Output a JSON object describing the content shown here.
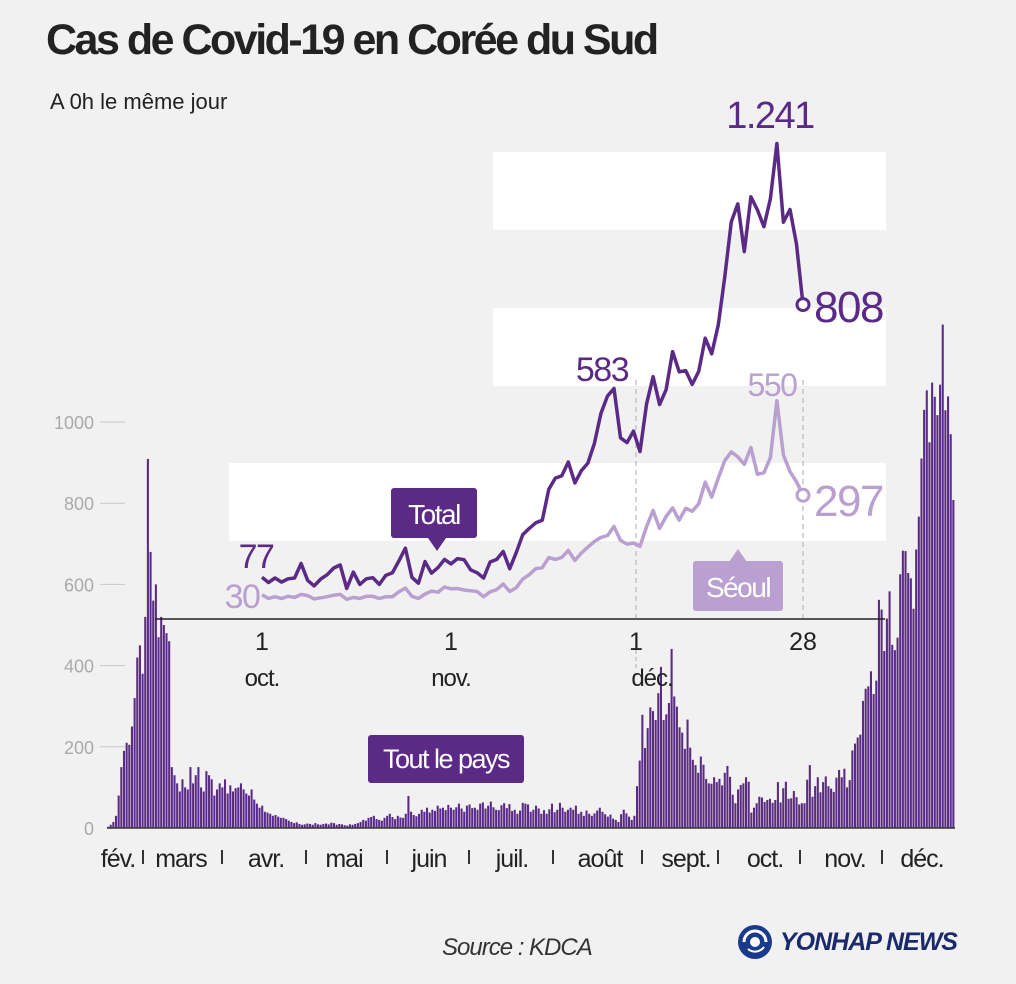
{
  "title": "Cas de Covid-19 en Corée du Sud",
  "subtitle": "A 0h le même jour",
  "source": "Source : KDCA",
  "logo_text": "YONHAP NEWS",
  "colors": {
    "total": "#5b2a86",
    "seoul": "#b9a0d0",
    "bars": "#5b2a86",
    "grid_text": "#aaaaaa"
  },
  "chart_data": [
    {
      "type": "bar",
      "series": [
        {
          "name": "Tout le pays"
        }
      ],
      "y_ticks": [
        "0",
        "200",
        "400",
        "600",
        "800",
        "1000"
      ],
      "ylim": [
        0,
        1300
      ],
      "month_labels": [
        "fév.",
        "mars",
        "avr.",
        "mai",
        "juin",
        "juil.",
        "août",
        "sept.",
        "oct.",
        "nov.",
        "déc."
      ],
      "values": [
        3,
        8,
        15,
        30,
        80,
        150,
        190,
        210,
        205,
        250,
        320,
        420,
        450,
        380,
        520,
        909,
        680,
        560,
        600,
        470,
        520,
        500,
        480,
        460,
        150,
        130,
        110,
        90,
        120,
        100,
        95,
        150,
        110,
        130,
        150,
        100,
        90,
        140,
        130,
        120,
        80,
        95,
        110,
        100,
        120,
        85,
        105,
        90,
        98,
        100,
        110,
        95,
        85,
        80,
        95,
        70,
        60,
        50,
        55,
        40,
        38,
        35,
        30,
        32,
        28,
        25,
        25,
        22,
        18,
        15,
        12,
        14,
        10,
        8,
        9,
        11,
        10,
        8,
        12,
        9,
        8,
        10,
        11,
        9,
        13,
        12,
        8,
        10,
        9,
        7,
        6,
        9,
        8,
        10,
        12,
        15,
        20,
        18,
        25,
        27,
        30,
        22,
        20,
        18,
        25,
        30,
        35,
        27,
        22,
        30,
        26,
        25,
        35,
        79,
        40,
        32,
        29,
        35,
        45,
        40,
        50,
        38,
        45,
        42,
        55,
        48,
        50,
        44,
        57,
        50,
        45,
        51,
        60,
        48,
        40,
        55,
        58,
        49,
        50,
        45,
        60,
        63,
        48,
        55,
        65,
        51,
        45,
        44,
        56,
        61,
        49,
        59,
        42,
        45,
        35,
        43,
        62,
        60,
        58,
        40,
        45,
        55,
        48,
        35,
        44,
        35,
        46,
        60,
        39,
        45,
        62,
        50,
        40,
        45,
        50,
        45,
        55,
        35,
        40,
        30,
        43,
        35,
        30,
        36,
        43,
        50,
        40,
        34,
        28,
        33,
        23,
        20,
        15,
        34,
        45,
        36,
        28,
        20,
        30,
        103,
        166,
        279,
        197,
        246,
        297,
        288,
        266,
        332,
        397,
        266,
        280,
        308,
        441,
        324,
        299,
        248,
        235,
        195,
        267,
        198,
        168,
        155,
        136,
        176,
        156,
        121,
        110,
        109,
        125,
        113,
        121,
        105,
        136,
        153,
        126,
        82,
        61,
        95,
        106,
        110,
        125,
        114,
        38,
        50,
        61,
        77,
        75,
        64,
        69,
        72,
        62,
        69,
        113,
        63,
        98,
        114,
        72,
        73,
        91,
        76,
        58,
        61,
        61,
        119,
        155,
        77,
        103,
        125,
        88,
        113,
        127,
        103,
        97,
        89,
        124,
        143,
        125,
        146,
        100,
        118,
        191,
        208,
        223,
        230,
        313,
        343,
        349,
        386,
        330,
        363,
        562,
        538,
        436,
        516,
        583,
        451,
        438,
        469,
        625,
        683,
        682,
        628,
        615,
        540,
        686,
        767,
        910,
        1030,
        1078,
        950,
        1097,
        1062,
        1017,
        1092,
        1240,
        1029,
        1063,
        970,
        808
      ]
    },
    {
      "type": "line",
      "x_ticks": [
        {
          "day": "1",
          "month": "oct."
        },
        {
          "day": "1",
          "month": "nov."
        },
        {
          "day": "1",
          "month": "déc."
        },
        {
          "day": "28",
          "month": ""
        }
      ],
      "series": [
        {
          "name": "Total",
          "start_value": "77",
          "peak_label": "583",
          "max_label": "1.241",
          "end_label": "808",
          "values": [
            77,
            63,
            75,
            64,
            73,
            75,
            114,
            69,
            54,
            72,
            84,
            102,
            110,
            47,
            91,
            58,
            73,
            76,
            58,
            82,
            89,
            121,
            155,
            77,
            61,
            119,
            88,
            103,
            125,
            113,
            127,
            124,
            97,
            89,
            75,
            118,
            125,
            146,
            100,
            143,
            191,
            208,
            223,
            230,
            313,
            343,
            349,
            386,
            330,
            363,
            383,
            436,
            516,
            563,
            583,
            451,
            438,
            469,
            414,
            542,
            615,
            540,
            580,
            682,
            628,
            631,
            594,
            629,
            718,
            676,
            754,
            883,
            1030,
            1078,
            950,
            1097,
            1062,
            1017,
            1092,
            1240,
            1029,
            1063,
            970,
            808
          ]
        },
        {
          "name": "Séoul",
          "start_value": "30",
          "peak_label": "550",
          "end_label": "297",
          "values": [
            30,
            20,
            25,
            20,
            26,
            23,
            31,
            28,
            19,
            22,
            25,
            29,
            31,
            18,
            23,
            20,
            26,
            26,
            20,
            25,
            25,
            38,
            48,
            26,
            20,
            32,
            40,
            37,
            51,
            46,
            47,
            43,
            41,
            39,
            25,
            38,
            44,
            59,
            39,
            49,
            72,
            84,
            100,
            103,
            130,
            125,
            130,
            149,
            122,
            142,
            158,
            173,
            184,
            189,
            213,
            176,
            166,
            169,
            160,
            213,
            256,
            208,
            240,
            263,
            230,
            262,
            254,
            274,
            332,
            292,
            343,
            390,
            413,
            400,
            380,
            425,
            353,
            357,
            398,
            550,
            405,
            360,
            333,
            297
          ]
        }
      ]
    }
  ]
}
